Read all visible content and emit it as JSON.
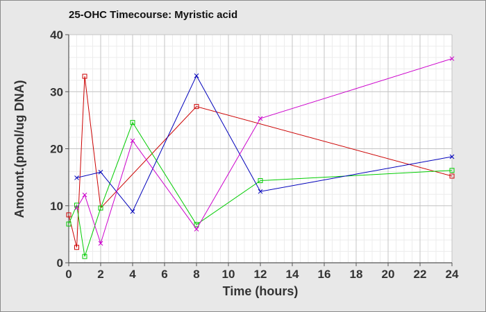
{
  "chart_data": {
    "type": "line",
    "title": "25-OHC Timecourse: Myristic acid",
    "xlabel": "Time (hours)",
    "ylabel": "Amount.(pmol/ug DNA)",
    "xlim": [
      0,
      24
    ],
    "ylim": [
      0,
      40
    ],
    "xticks": [
      0,
      2,
      4,
      6,
      8,
      10,
      12,
      14,
      16,
      18,
      20,
      22,
      24
    ],
    "yticks": [
      0,
      10,
      20,
      30,
      40
    ],
    "grid": true,
    "minor_grid": true,
    "series": [
      {
        "color": "#cc0000",
        "marker": "square",
        "x": [
          0,
          0.5,
          1,
          2,
          8,
          24
        ],
        "y": [
          8.4,
          2.7,
          32.7,
          9.6,
          27.4,
          15.2
        ]
      },
      {
        "color": "#00cc00",
        "marker": "square",
        "x": [
          0,
          0.5,
          1,
          2,
          4,
          8,
          12,
          24
        ],
        "y": [
          6.8,
          10.1,
          1.1,
          9.6,
          24.6,
          6.7,
          14.4,
          16.2
        ]
      },
      {
        "color": "#0000bb",
        "marker": "x",
        "x": [
          0.5,
          2,
          4,
          8,
          12,
          24
        ],
        "y": [
          14.9,
          15.9,
          9.0,
          32.8,
          12.5,
          18.6
        ]
      },
      {
        "color": "#cc00cc",
        "marker": "x",
        "x": [
          0.5,
          1,
          2,
          4,
          8,
          12,
          24
        ],
        "y": [
          9.6,
          11.9,
          3.4,
          21.4,
          5.9,
          25.3,
          35.8
        ]
      }
    ]
  }
}
